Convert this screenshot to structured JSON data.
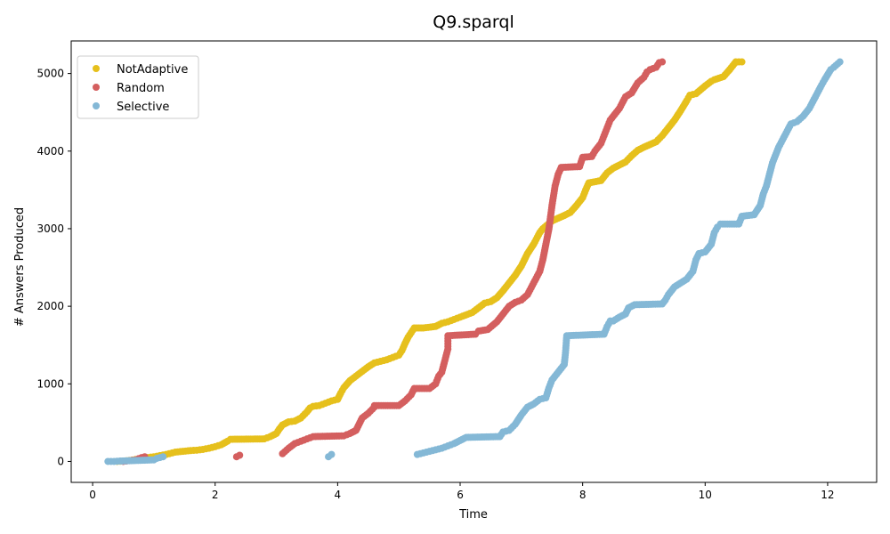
{
  "chart_data": {
    "type": "scatter",
    "title": "Q9.sparql",
    "xlabel": "Time",
    "ylabel": "# Answers Produced",
    "xlim": [
      -0.35,
      12.8
    ],
    "ylim": [
      -270,
      5420
    ],
    "xticks": [
      0,
      2,
      4,
      6,
      8,
      10,
      12
    ],
    "yticks": [
      0,
      1000,
      2000,
      3000,
      4000,
      5000
    ],
    "grid": false,
    "legend_position": "top-left",
    "series": [
      {
        "name": "NotAdaptive",
        "color": "#e6c01c",
        "points": [
          [
            0.4,
            0
          ],
          [
            0.5,
            5
          ],
          [
            0.6,
            12
          ],
          [
            0.7,
            25
          ],
          [
            0.8,
            40
          ],
          [
            0.9,
            50
          ],
          [
            1.0,
            60
          ],
          [
            1.1,
            75
          ],
          [
            1.2,
            90
          ],
          [
            1.3,
            110
          ],
          [
            1.35,
            120
          ],
          [
            1.6,
            140
          ],
          [
            1.7,
            145
          ],
          [
            1.8,
            155
          ],
          [
            1.9,
            170
          ],
          [
            2.0,
            190
          ],
          [
            2.1,
            215
          ],
          [
            2.2,
            260
          ],
          [
            2.25,
            285
          ],
          [
            2.8,
            290
          ],
          [
            2.9,
            320
          ],
          [
            3.0,
            360
          ],
          [
            3.05,
            420
          ],
          [
            3.1,
            470
          ],
          [
            3.2,
            510
          ],
          [
            3.3,
            520
          ],
          [
            3.4,
            560
          ],
          [
            3.5,
            640
          ],
          [
            3.55,
            690
          ],
          [
            3.6,
            710
          ],
          [
            3.7,
            720
          ],
          [
            3.8,
            750
          ],
          [
            3.9,
            780
          ],
          [
            4.0,
            800
          ],
          [
            4.05,
            880
          ],
          [
            4.1,
            950
          ],
          [
            4.2,
            1040
          ],
          [
            4.3,
            1100
          ],
          [
            4.4,
            1160
          ],
          [
            4.5,
            1220
          ],
          [
            4.6,
            1270
          ],
          [
            4.7,
            1290
          ],
          [
            4.8,
            1310
          ],
          [
            4.9,
            1340
          ],
          [
            5.0,
            1370
          ],
          [
            5.05,
            1430
          ],
          [
            5.1,
            1520
          ],
          [
            5.15,
            1600
          ],
          [
            5.2,
            1660
          ],
          [
            5.25,
            1720
          ],
          [
            5.4,
            1720
          ],
          [
            5.6,
            1740
          ],
          [
            5.7,
            1780
          ],
          [
            5.8,
            1800
          ],
          [
            5.9,
            1830
          ],
          [
            6.0,
            1860
          ],
          [
            6.2,
            1920
          ],
          [
            6.3,
            1980
          ],
          [
            6.4,
            2040
          ],
          [
            6.5,
            2060
          ],
          [
            6.6,
            2110
          ],
          [
            6.7,
            2200
          ],
          [
            6.8,
            2300
          ],
          [
            6.9,
            2400
          ],
          [
            7.0,
            2520
          ],
          [
            7.1,
            2680
          ],
          [
            7.2,
            2800
          ],
          [
            7.3,
            2950
          ],
          [
            7.35,
            3000
          ],
          [
            7.5,
            3100
          ],
          [
            7.7,
            3170
          ],
          [
            7.8,
            3210
          ],
          [
            7.9,
            3300
          ],
          [
            8.0,
            3400
          ],
          [
            8.05,
            3500
          ],
          [
            8.1,
            3590
          ],
          [
            8.3,
            3620
          ],
          [
            8.4,
            3720
          ],
          [
            8.5,
            3780
          ],
          [
            8.6,
            3820
          ],
          [
            8.7,
            3860
          ],
          [
            8.8,
            3940
          ],
          [
            8.9,
            4010
          ],
          [
            9.0,
            4050
          ],
          [
            9.2,
            4120
          ],
          [
            9.3,
            4200
          ],
          [
            9.4,
            4300
          ],
          [
            9.5,
            4400
          ],
          [
            9.6,
            4520
          ],
          [
            9.7,
            4650
          ],
          [
            9.75,
            4720
          ],
          [
            9.85,
            4740
          ],
          [
            10.0,
            4840
          ],
          [
            10.1,
            4900
          ],
          [
            10.15,
            4920
          ],
          [
            10.3,
            4960
          ],
          [
            10.4,
            5050
          ],
          [
            10.5,
            5150
          ],
          [
            10.6,
            5150
          ]
        ]
      },
      {
        "name": "Random",
        "color": "#d45f5f",
        "points": [
          [
            0.5,
            0
          ],
          [
            0.6,
            10
          ],
          [
            0.7,
            20
          ],
          [
            0.8,
            50
          ],
          [
            0.85,
            60
          ],
          [
            2.35,
            60
          ],
          [
            2.4,
            80
          ],
          [
            3.1,
            100
          ],
          [
            3.2,
            170
          ],
          [
            3.3,
            230
          ],
          [
            3.4,
            260
          ],
          [
            3.5,
            290
          ],
          [
            3.6,
            320
          ],
          [
            4.1,
            330
          ],
          [
            4.2,
            360
          ],
          [
            4.3,
            400
          ],
          [
            4.35,
            480
          ],
          [
            4.4,
            560
          ],
          [
            4.5,
            620
          ],
          [
            4.6,
            700
          ],
          [
            4.6,
            720
          ],
          [
            5.0,
            720
          ],
          [
            5.1,
            780
          ],
          [
            5.2,
            860
          ],
          [
            5.25,
            940
          ],
          [
            5.5,
            940
          ],
          [
            5.6,
            1000
          ],
          [
            5.65,
            1100
          ],
          [
            5.7,
            1150
          ],
          [
            5.75,
            1300
          ],
          [
            5.8,
            1450
          ],
          [
            5.8,
            1620
          ],
          [
            6.25,
            1640
          ],
          [
            6.3,
            1680
          ],
          [
            6.45,
            1700
          ],
          [
            6.6,
            1800
          ],
          [
            6.7,
            1900
          ],
          [
            6.8,
            2000
          ],
          [
            6.9,
            2050
          ],
          [
            7.0,
            2080
          ],
          [
            7.1,
            2150
          ],
          [
            7.2,
            2300
          ],
          [
            7.3,
            2450
          ],
          [
            7.35,
            2600
          ],
          [
            7.4,
            2800
          ],
          [
            7.45,
            3000
          ],
          [
            7.5,
            3300
          ],
          [
            7.55,
            3550
          ],
          [
            7.6,
            3700
          ],
          [
            7.65,
            3790
          ],
          [
            7.95,
            3800
          ],
          [
            8.0,
            3920
          ],
          [
            8.15,
            3930
          ],
          [
            8.2,
            4000
          ],
          [
            8.3,
            4100
          ],
          [
            8.35,
            4200
          ],
          [
            8.4,
            4300
          ],
          [
            8.45,
            4400
          ],
          [
            8.5,
            4450
          ],
          [
            8.6,
            4550
          ],
          [
            8.7,
            4700
          ],
          [
            8.8,
            4750
          ],
          [
            8.9,
            4880
          ],
          [
            9.0,
            4950
          ],
          [
            9.05,
            5020
          ],
          [
            9.1,
            5050
          ],
          [
            9.2,
            5080
          ],
          [
            9.25,
            5140
          ],
          [
            9.3,
            5150
          ]
        ]
      },
      {
        "name": "Selective",
        "color": "#84b8d6",
        "points": [
          [
            0.25,
            0
          ],
          [
            0.35,
            0
          ],
          [
            0.45,
            5
          ],
          [
            1.0,
            20
          ],
          [
            1.05,
            40
          ],
          [
            1.1,
            50
          ],
          [
            1.15,
            60
          ],
          [
            3.85,
            60
          ],
          [
            3.9,
            90
          ],
          [
            5.3,
            90
          ],
          [
            5.4,
            110
          ],
          [
            5.5,
            130
          ],
          [
            5.6,
            150
          ],
          [
            5.7,
            170
          ],
          [
            5.8,
            200
          ],
          [
            5.9,
            230
          ],
          [
            6.0,
            270
          ],
          [
            6.1,
            310
          ],
          [
            6.65,
            320
          ],
          [
            6.7,
            380
          ],
          [
            6.8,
            400
          ],
          [
            6.9,
            480
          ],
          [
            7.0,
            600
          ],
          [
            7.1,
            700
          ],
          [
            7.2,
            740
          ],
          [
            7.3,
            800
          ],
          [
            7.4,
            820
          ],
          [
            7.45,
            950
          ],
          [
            7.5,
            1050
          ],
          [
            7.6,
            1150
          ],
          [
            7.7,
            1250
          ],
          [
            7.72,
            1400
          ],
          [
            7.74,
            1620
          ],
          [
            8.35,
            1640
          ],
          [
            8.4,
            1740
          ],
          [
            8.45,
            1810
          ],
          [
            8.5,
            1810
          ],
          [
            8.6,
            1860
          ],
          [
            8.7,
            1900
          ],
          [
            8.75,
            1980
          ],
          [
            8.85,
            2020
          ],
          [
            9.3,
            2030
          ],
          [
            9.35,
            2080
          ],
          [
            9.4,
            2150
          ],
          [
            9.5,
            2250
          ],
          [
            9.6,
            2300
          ],
          [
            9.7,
            2350
          ],
          [
            9.8,
            2450
          ],
          [
            9.85,
            2600
          ],
          [
            9.9,
            2680
          ],
          [
            10.0,
            2700
          ],
          [
            10.1,
            2800
          ],
          [
            10.15,
            2950
          ],
          [
            10.2,
            3020
          ],
          [
            10.25,
            3060
          ],
          [
            10.55,
            3060
          ],
          [
            10.6,
            3160
          ],
          [
            10.8,
            3180
          ],
          [
            10.9,
            3300
          ],
          [
            10.95,
            3450
          ],
          [
            11.0,
            3550
          ],
          [
            11.05,
            3700
          ],
          [
            11.1,
            3850
          ],
          [
            11.2,
            4050
          ],
          [
            11.3,
            4200
          ],
          [
            11.4,
            4350
          ],
          [
            11.5,
            4380
          ],
          [
            11.6,
            4450
          ],
          [
            11.7,
            4550
          ],
          [
            11.8,
            4700
          ],
          [
            11.9,
            4850
          ],
          [
            11.95,
            4920
          ],
          [
            12.05,
            5050
          ],
          [
            12.1,
            5080
          ],
          [
            12.2,
            5150
          ]
        ]
      }
    ]
  }
}
